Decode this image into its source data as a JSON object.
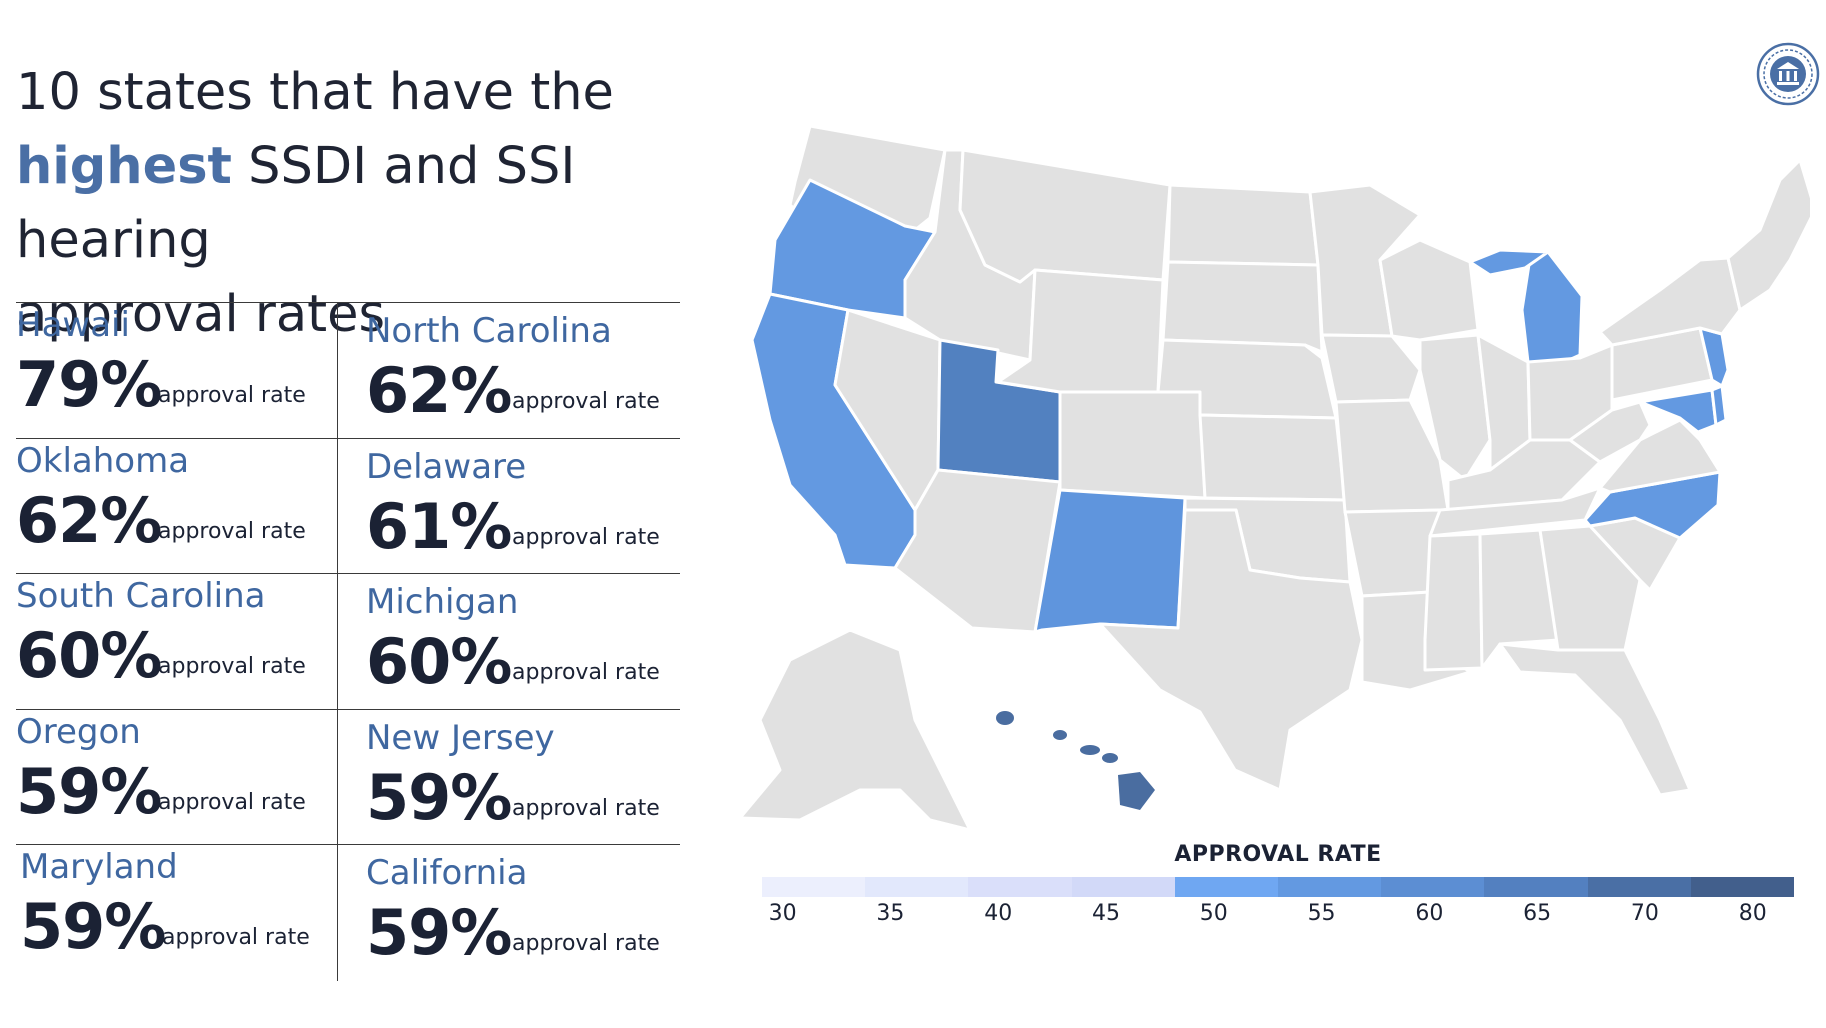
{
  "title": {
    "line1": "10 states that have the",
    "highlight": "highest",
    "line2_rest": " SSDI and SSI hearing",
    "line3": "approval rates"
  },
  "stats": [
    {
      "state": "Hawaii",
      "rate": "79%",
      "label": "approval rate"
    },
    {
      "state": "North Carolina",
      "rate": "62%",
      "label": "approval rate"
    },
    {
      "state": "Oklahoma",
      "rate": "62%",
      "label": "approval rate"
    },
    {
      "state": "Delaware",
      "rate": "61%",
      "label": "approval rate"
    },
    {
      "state": "South Carolina",
      "rate": "60%",
      "label": "approval rate"
    },
    {
      "state": "Michigan",
      "rate": "60%",
      "label": "approval rate"
    },
    {
      "state": "Oregon",
      "rate": "59%",
      "label": "approval rate"
    },
    {
      "state": "New Jersey",
      "rate": "59%",
      "label": "approval rate"
    },
    {
      "state": "Maryland",
      "rate": "59%",
      "label": "approval rate"
    },
    {
      "state": "California",
      "rate": "59%",
      "label": "approval rate"
    }
  ],
  "map": {
    "default_color": "#e1e1e1",
    "highlighted": [
      {
        "state": "Hawaii",
        "value": 79,
        "color": "#4a6da0"
      },
      {
        "state": "Utah",
        "value": 65,
        "color": "#5281c0"
      },
      {
        "state": "Oregon",
        "value": 59,
        "color": "#6399e1"
      },
      {
        "state": "California",
        "value": 59,
        "color": "#6399e1"
      },
      {
        "state": "New Mexico",
        "value": 58,
        "color": "#5f95dd"
      },
      {
        "state": "Michigan",
        "value": 60,
        "color": "#6399e1"
      },
      {
        "state": "North Carolina",
        "value": 62,
        "color": "#6399e1"
      },
      {
        "state": "New Jersey",
        "value": 59,
        "color": "#6399e1"
      },
      {
        "state": "Maryland",
        "value": 59,
        "color": "#6399e1"
      },
      {
        "state": "Delaware",
        "value": 61,
        "color": "#6399e1"
      }
    ]
  },
  "legend": {
    "title": "APPROVAL RATE",
    "ticks": [
      "30",
      "35",
      "40",
      "45",
      "50",
      "55",
      "60",
      "65",
      "70",
      "80"
    ],
    "colors": [
      "#eceffd",
      "#e2e8fc",
      "#dadffa",
      "#d2d9f8",
      "#6fa7f2",
      "#6399e1",
      "#5c8ed3",
      "#5380c0",
      "#4a6fa5",
      "#425f8c"
    ]
  }
}
